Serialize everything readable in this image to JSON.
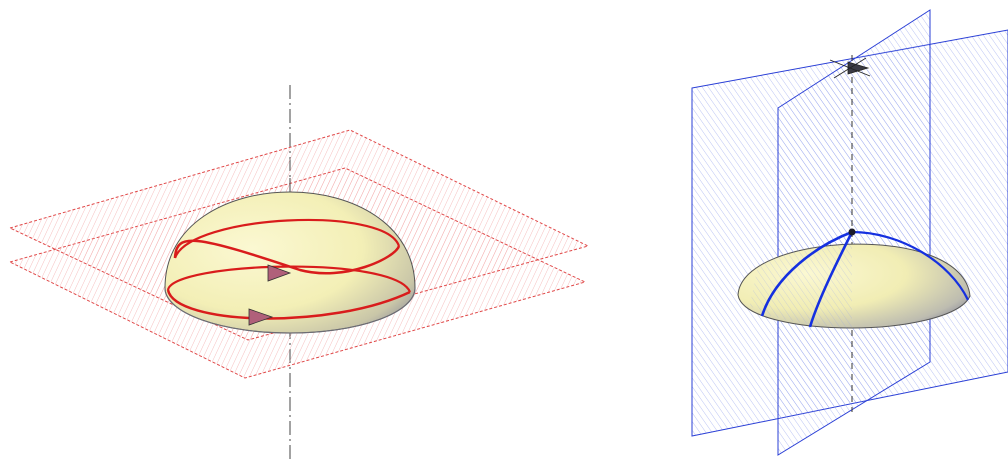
{
  "figure": {
    "panels": [
      {
        "id": "left",
        "subject": "hemisphere-cut-by-horizontal-planes",
        "surface_color": "#f6f3b8",
        "plane_color": "#e23a3a",
        "curve_color": "#d91c1c",
        "arrow_color": "#b0607a",
        "axis_color": "#444444"
      },
      {
        "id": "right",
        "subject": "hemisphere-cut-by-vertical-planes",
        "surface_color": "#f6f3b8",
        "plane_color": "#2a3fd6",
        "curve_color": "#1530e0",
        "arrow_color": "#3a3a44",
        "axis_color": "#333333"
      }
    ]
  }
}
